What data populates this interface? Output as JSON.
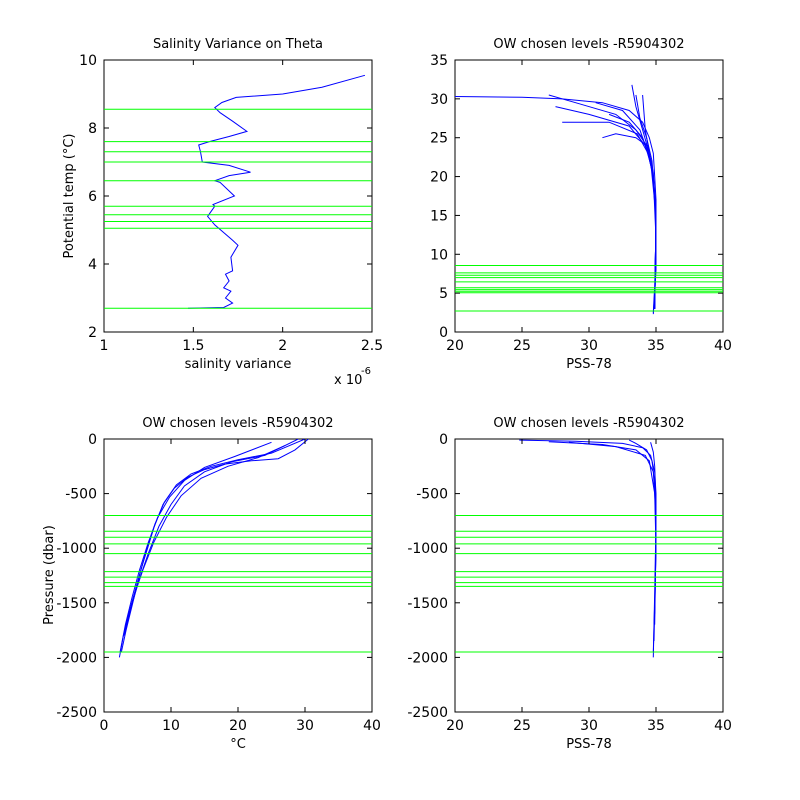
{
  "colors": {
    "profile": "#0000ff",
    "levels": "#00ff00",
    "axis": "#000000"
  },
  "chart_data": [
    {
      "id": "p1",
      "type": "line",
      "title": "Salinity Variance on Theta",
      "xlabel": "salinity variance",
      "ylabel": "Potential temp (°C)",
      "x_exponent_label": "x 10",
      "x_exponent_power": "-6",
      "xlim": [
        1,
        2.5
      ],
      "ylim": [
        2,
        10
      ],
      "xticks": [
        1,
        1.5,
        2,
        2.5
      ],
      "xtick_labels": [
        "1",
        "1.5",
        "2",
        "2.5"
      ],
      "yticks": [
        2,
        4,
        6,
        8,
        10
      ],
      "ytick_labels": [
        "2",
        "4",
        "6",
        "8",
        "10"
      ],
      "grid": false,
      "series": [
        {
          "x": [
            1.47,
            1.67,
            1.72,
            1.68,
            1.71,
            1.67,
            1.7,
            1.68,
            1.72,
            1.71,
            1.75,
            1.72,
            1.62,
            1.58,
            1.62,
            1.61,
            1.73,
            1.65,
            1.62,
            1.7,
            1.82,
            1.7,
            1.55,
            1.54,
            1.53,
            1.59,
            1.7,
            1.8,
            1.72,
            1.65,
            1.62,
            1.66,
            1.74,
            2.0,
            2.22,
            2.46
          ],
          "y": [
            2.7,
            2.72,
            2.85,
            3.0,
            3.2,
            3.3,
            3.5,
            3.7,
            3.8,
            4.2,
            4.55,
            4.7,
            5.15,
            5.4,
            5.7,
            5.75,
            6.0,
            6.4,
            6.45,
            6.6,
            6.7,
            6.9,
            7.0,
            7.3,
            7.5,
            7.6,
            7.75,
            7.9,
            8.2,
            8.45,
            8.6,
            8.75,
            8.9,
            9.0,
            9.2,
            9.55
          ]
        }
      ],
      "levels": [
        2.7,
        5.05,
        5.25,
        5.45,
        5.7,
        6.45,
        7.0,
        7.3,
        7.6,
        8.55
      ]
    },
    {
      "id": "p2",
      "type": "line",
      "title": "OW chosen levels -R5904302",
      "xlabel": "PSS-78",
      "ylabel": "",
      "xlim": [
        20,
        40
      ],
      "ylim": [
        0,
        35
      ],
      "xticks": [
        20,
        25,
        30,
        35,
        40
      ],
      "xtick_labels": [
        "20",
        "25",
        "30",
        "35",
        "40"
      ],
      "yticks": [
        0,
        5,
        10,
        15,
        20,
        25,
        30,
        35
      ],
      "ytick_labels": [
        "0",
        "5",
        "10",
        "15",
        "20",
        "25",
        "30",
        "35"
      ],
      "grid": false,
      "series": [
        {
          "x": [
            34.8,
            34.9,
            35.0,
            35.0,
            35.0,
            34.9,
            34.8,
            34.5,
            34.0,
            33.0,
            31.0,
            28.0,
            25.0,
            20.0
          ],
          "y": [
            2.3,
            5.0,
            8.0,
            12.0,
            17.0,
            20.0,
            23.0,
            25.0,
            27.0,
            28.5,
            29.5,
            30.0,
            30.2,
            30.3
          ]
        },
        {
          "x": [
            34.8,
            34.9,
            35.0,
            34.9,
            34.7,
            34.3,
            33.5,
            32.0,
            29.0,
            27.0
          ],
          "y": [
            2.5,
            6.0,
            12.0,
            18.0,
            21.0,
            24.0,
            26.0,
            28.0,
            29.5,
            30.5
          ]
        },
        {
          "x": [
            34.9,
            35.0,
            34.8,
            34.5,
            34.0,
            33.5,
            33.2
          ],
          "y": [
            3.0,
            12.0,
            20.0,
            23.0,
            26.0,
            29.0,
            31.8
          ]
        },
        {
          "x": [
            34.9,
            35.0,
            34.8,
            34.4,
            33.6,
            31.5,
            28.0
          ],
          "y": [
            3.0,
            14.0,
            20.0,
            23.0,
            25.5,
            27.0,
            27.0
          ]
        },
        {
          "x": [
            34.9,
            35.0,
            34.7,
            34.2,
            33.0,
            30.0,
            27.5
          ],
          "y": [
            3.0,
            15.0,
            21.0,
            24.0,
            26.5,
            28.0,
            29.0
          ]
        },
        {
          "x": [
            34.9,
            35.0,
            34.7,
            34.3,
            33.5,
            32.0,
            31.0
          ],
          "y": [
            3.0,
            15.0,
            21.5,
            24.0,
            25.0,
            25.5,
            25.0
          ]
        },
        {
          "x": [
            34.9,
            35.0,
            34.8,
            34.5,
            34.2,
            34.0
          ],
          "y": [
            3.0,
            15.0,
            20.5,
            23.0,
            26.0,
            30.5
          ]
        },
        {
          "x": [
            34.9,
            35.0,
            34.8,
            34.4,
            33.8,
            32.5,
            30.5
          ],
          "y": [
            3.0,
            15.0,
            20.0,
            23.0,
            26.0,
            28.5,
            29.5
          ]
        },
        {
          "x": [
            34.9,
            35.0,
            34.6,
            34.0,
            33.0,
            31.5
          ],
          "y": [
            3.0,
            15.0,
            22.0,
            25.0,
            27.0,
            28.0
          ]
        },
        {
          "x": [
            34.9,
            35.0,
            34.7,
            34.3,
            33.8,
            33.5
          ],
          "y": [
            3.0,
            15.0,
            22.0,
            25.0,
            27.5,
            30.5
          ]
        }
      ],
      "levels": [
        2.7,
        5.05,
        5.25,
        5.45,
        5.7,
        6.45,
        7.0,
        7.3,
        7.6,
        8.55
      ]
    },
    {
      "id": "p3",
      "type": "line",
      "title": "OW chosen levels -R5904302",
      "xlabel": "°C",
      "ylabel": "Pressure (dbar)",
      "xlim": [
        0,
        40
      ],
      "ylim": [
        -2500,
        0
      ],
      "xticks": [
        0,
        10,
        20,
        30,
        40
      ],
      "xtick_labels": [
        "0",
        "10",
        "20",
        "30",
        "40"
      ],
      "yticks": [
        -2500,
        -2000,
        -1500,
        -1000,
        -500,
        0
      ],
      "ytick_labels": [
        "-2500",
        "-2000",
        "-1500",
        "-1000",
        "-500",
        "0"
      ],
      "grid": false,
      "series": [
        {
          "x": [
            2.3,
            2.9,
            3.7,
            4.6,
            5.5,
            6.5,
            7.5,
            8.8,
            10.5,
            12.5,
            15.0,
            18.0,
            22.0,
            26.0,
            28.5,
            30.5
          ],
          "y": [
            -2000,
            -1800,
            -1600,
            -1400,
            -1200,
            -1000,
            -800,
            -600,
            -450,
            -350,
            -280,
            -230,
            -200,
            -180,
            -100,
            0
          ]
        },
        {
          "x": [
            2.6,
            3.3,
            4.3,
            5.3,
            6.4,
            7.6,
            9.0,
            10.8,
            13.0,
            16.0,
            20.0,
            25.0,
            30.0
          ],
          "y": [
            -1950,
            -1750,
            -1500,
            -1250,
            -1000,
            -780,
            -580,
            -420,
            -320,
            -250,
            -190,
            -130,
            0
          ]
        },
        {
          "x": [
            3.0,
            4.0,
            5.2,
            6.6,
            8.2,
            10.0,
            12.0,
            15.0,
            19.0,
            24.0,
            29.0
          ],
          "y": [
            -1800,
            -1550,
            -1300,
            -1050,
            -800,
            -600,
            -430,
            -300,
            -210,
            -150,
            0
          ]
        },
        {
          "x": [
            3.3,
            4.4,
            5.8,
            7.4,
            9.3,
            11.5,
            14.5,
            18.5,
            23.0,
            27.0
          ],
          "y": [
            -1700,
            -1450,
            -1200,
            -950,
            -720,
            -520,
            -360,
            -250,
            -170,
            -60
          ]
        },
        {
          "x": [
            2.4,
            3.2,
            4.2,
            5.3,
            6.6,
            8.0,
            9.8,
            12.0,
            15.0,
            19.5,
            25.0
          ],
          "y": [
            -1950,
            -1700,
            -1450,
            -1200,
            -950,
            -720,
            -530,
            -380,
            -260,
            -160,
            -30
          ]
        }
      ],
      "levels": [
        -700,
        -845,
        -900,
        -960,
        -1050,
        -1215,
        -1265,
        -1315,
        -1350,
        -1950
      ]
    },
    {
      "id": "p4",
      "type": "line",
      "title": "OW chosen levels -R5904302",
      "xlabel": "PSS-78",
      "ylabel": "",
      "xlim": [
        20,
        40
      ],
      "ylim": [
        -2500,
        0
      ],
      "xticks": [
        20,
        25,
        30,
        35,
        40
      ],
      "xtick_labels": [
        "20",
        "25",
        "30",
        "35",
        "40"
      ],
      "yticks": [
        -2500,
        -2000,
        -1500,
        -1000,
        -500,
        0
      ],
      "ytick_labels": [
        "-2500",
        "-2000",
        "-1500",
        "-1000",
        "-500",
        "0"
      ],
      "grid": false,
      "series": [
        {
          "x": [
            34.8,
            34.85,
            34.9,
            34.95,
            35.0,
            35.0,
            34.9,
            34.6,
            34.0,
            32.5,
            29.0,
            24.8
          ],
          "y": [
            -2000,
            -1700,
            -1400,
            -1100,
            -800,
            -500,
            -300,
            -150,
            -80,
            -40,
            -20,
            -10
          ]
        },
        {
          "x": [
            34.8,
            34.9,
            35.0,
            34.9,
            34.5,
            33.5,
            31.0,
            27.0
          ],
          "y": [
            -1950,
            -1500,
            -1000,
            -500,
            -200,
            -100,
            -50,
            -25
          ]
        },
        {
          "x": [
            34.85,
            34.95,
            35.0,
            34.8,
            34.2,
            32.0,
            28.5
          ],
          "y": [
            -1850,
            -1300,
            -700,
            -300,
            -150,
            -70,
            -30
          ]
        },
        {
          "x": [
            34.9,
            35.0,
            34.9,
            34.7,
            34.3,
            33.5,
            33.0
          ],
          "y": [
            -1700,
            -900,
            -400,
            -200,
            -100,
            -40,
            -10
          ]
        },
        {
          "x": [
            34.9,
            35.0,
            35.0,
            34.9,
            34.8,
            34.6
          ],
          "y": [
            -1600,
            -1000,
            -600,
            -250,
            -120,
            -30
          ]
        }
      ],
      "levels": [
        -700,
        -845,
        -900,
        -960,
        -1050,
        -1215,
        -1265,
        -1315,
        -1350,
        -1950
      ]
    }
  ]
}
